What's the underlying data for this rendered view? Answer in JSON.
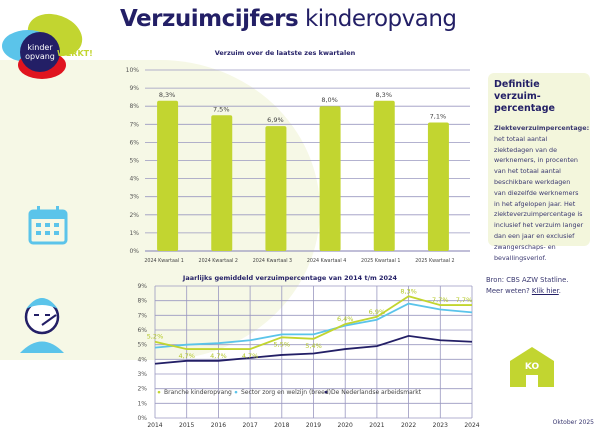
{
  "header": {
    "title_bold": "Verzuimcijfers",
    "title_rest": "kinderopvang"
  },
  "logo": {
    "text1": "kinder",
    "text2": "opvang",
    "badge": "WERKT!"
  },
  "definition": {
    "title": "Definitie verzuim-percentage",
    "term": "Ziekteverzuimpercentage:",
    "body": "het totaal aantal ziektedagen van de werknemers, in procenten van het totaal aantal beschikbare werkdagen van diezelfde werknemers in het afgelopen jaar. Het ziekteverzuimpercentage is inclusief het verzuim langer dan een jaar en exclusief zwangerschaps- en bevallingsverlof."
  },
  "source": {
    "line1": "Bron: CBS AZW Statline.",
    "line2": "Meer weten?",
    "link": "Klik hier"
  },
  "date": "Oktober 2025",
  "icons": [
    "calendar-icon",
    "sick-person-thermometer-icon",
    "daycare-building-icon"
  ],
  "building_label": "KO",
  "colors": {
    "green": "#c2d530",
    "blue": "#5bc4ea",
    "navy": "#231f66"
  },
  "chart_data": [
    {
      "type": "bar",
      "title": "Verzuim over de laatste zes kwartalen",
      "categories": [
        "2024  Kwartaal 1",
        "2024  Kwartaal 2",
        "2024  Kwartaal 3",
        "2024  Kwartaal 4",
        "2025  Kwartaal 1",
        "2025  Kwartaal 2"
      ],
      "values": [
        8.3,
        7.5,
        6.9,
        8.0,
        8.3,
        7.1
      ],
      "labels": [
        "8,3%",
        "7,5%",
        "6,9%",
        "8,0%",
        "8,3%",
        "7,1%"
      ],
      "ylim": [
        0,
        10
      ],
      "yticks": [
        "0%",
        "1%",
        "2%",
        "3%",
        "4%",
        "5%",
        "6%",
        "7%",
        "8%",
        "9%",
        "10%"
      ],
      "grid": true
    },
    {
      "type": "line",
      "title": "Jaarlijks gemiddeld verzuimpercentage van 2014 t/m 2024",
      "x": [
        "2014",
        "2015",
        "2016",
        "2017",
        "2018",
        "2019",
        "2020",
        "2021",
        "2022",
        "2023",
        "2024"
      ],
      "ylim": [
        0,
        9
      ],
      "yticks": [
        "0%",
        "1%",
        "2%",
        "3%",
        "4%",
        "5%",
        "6%",
        "7%",
        "8%",
        "9%"
      ],
      "grid": true,
      "legend": "middle",
      "series": [
        {
          "name": "Branche kinderopvang",
          "color": "#c2d530",
          "values": [
            5.2,
            4.7,
            4.7,
            4.7,
            5.5,
            5.4,
            6.4,
            6.9,
            8.3,
            7.7,
            7.7
          ],
          "labels": [
            "5,2%",
            "4,7%",
            "4,7%",
            "4,7%",
            "5,5%",
            "5,4%",
            "6,4%",
            "6,9%",
            "8,3%",
            "7,7%",
            "7,7%"
          ]
        },
        {
          "name": "Sector zorg en welzijn (breed)",
          "color": "#5bc4ea",
          "values": [
            4.8,
            5.0,
            5.1,
            5.3,
            5.7,
            5.7,
            6.3,
            6.7,
            7.8,
            7.4,
            7.2
          ]
        },
        {
          "name": "De Nederlandse arbeidsmarkt",
          "color": "#231f66",
          "values": [
            3.7,
            3.9,
            3.9,
            4.1,
            4.3,
            4.4,
            4.7,
            4.9,
            5.6,
            5.3,
            5.2
          ]
        }
      ]
    }
  ]
}
